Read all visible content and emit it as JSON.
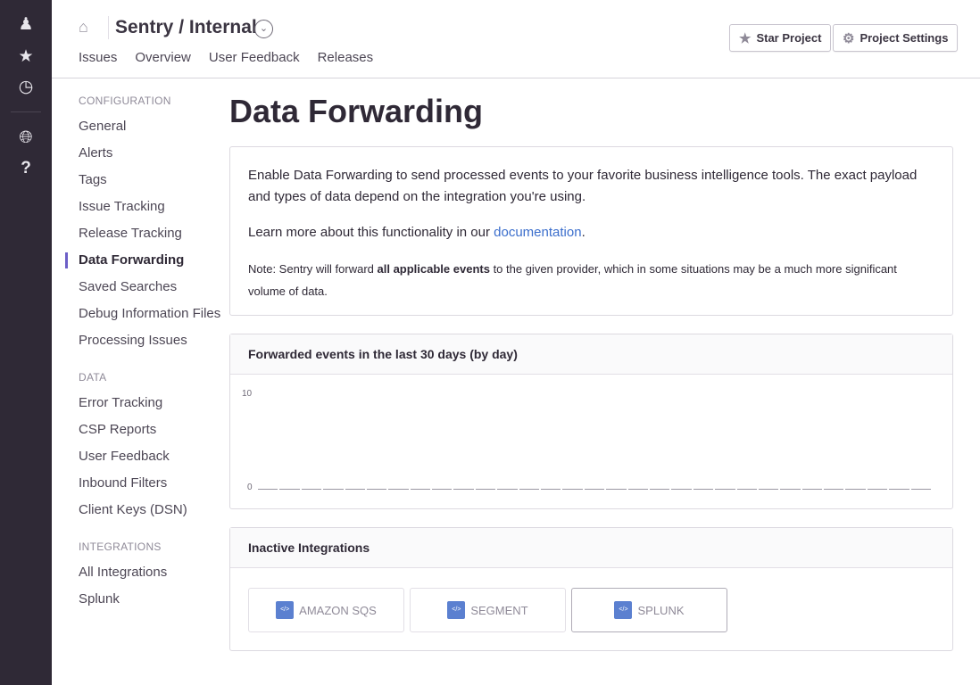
{
  "rail": {
    "icons": [
      "user-icon",
      "star-icon",
      "activity-icon",
      "globe-icon",
      "help-icon"
    ]
  },
  "header": {
    "title": "Sentry / Internal",
    "nav": [
      "Issues",
      "Overview",
      "User Feedback",
      "Releases"
    ],
    "star_label": "Star Project",
    "settings_label": "Project Settings"
  },
  "sidebar": {
    "sections": [
      {
        "heading": "CONFIGURATION",
        "items": [
          "General",
          "Alerts",
          "Tags",
          "Issue Tracking",
          "Release Tracking",
          "Data Forwarding",
          "Saved Searches",
          "Debug Information Files",
          "Processing Issues"
        ]
      },
      {
        "heading": "DATA",
        "items": [
          "Error Tracking",
          "CSP Reports",
          "User Feedback",
          "Inbound Filters",
          "Client Keys (DSN)"
        ]
      },
      {
        "heading": "INTEGRATIONS",
        "items": [
          "All Integrations",
          "Splunk"
        ]
      }
    ],
    "active": "Data Forwarding"
  },
  "main": {
    "title": "Data Forwarding",
    "intro": "Enable Data Forwarding to send processed events to your favorite business intelligence tools. The exact payload and types of data depend on the integration you're using.",
    "learn_prefix": "Learn more about this functionality in our ",
    "learn_link": "documentation",
    "learn_suffix": ".",
    "note_prefix": "Note: Sentry will forward ",
    "note_bold": "all applicable events",
    "note_suffix": " to the given provider, which in some situations may be a much more significant volume of data.",
    "chart_title": "Forwarded events in the last 30 days (by day)",
    "integrations_title": "Inactive Integrations",
    "integrations": [
      {
        "name": "AMAZON SQS",
        "selected": false
      },
      {
        "name": "SEGMENT",
        "selected": false
      },
      {
        "name": "SPLUNK",
        "selected": true
      }
    ]
  },
  "chart_data": {
    "type": "bar",
    "title": "Forwarded events in the last 30 days (by day)",
    "ylim": [
      0,
      10
    ],
    "yticks": [
      "10",
      "0"
    ],
    "values": [
      0,
      0,
      0,
      0,
      0,
      0,
      0,
      0,
      0,
      0,
      0,
      0,
      0,
      0,
      0,
      0,
      0,
      0,
      0,
      0,
      0,
      0,
      0,
      0,
      0,
      0,
      0,
      0,
      0,
      0,
      0
    ],
    "color": "#9a96a2"
  }
}
